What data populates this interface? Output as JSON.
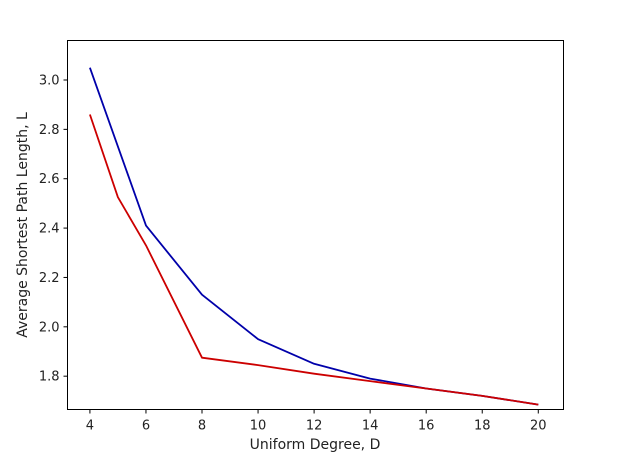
{
  "chart_data": {
    "type": "line",
    "title": "",
    "xlabel": "Uniform Degree, D",
    "ylabel": "Average Shortest Path Length, L",
    "xlim": [
      3.2,
      20.9
    ],
    "ylim": [
      1.665,
      3.16
    ],
    "x_ticks": [
      "4",
      "6",
      "8",
      "10",
      "12",
      "14",
      "16",
      "18",
      "20"
    ],
    "y_ticks": [
      "1.8",
      "2.0",
      "2.2",
      "2.4",
      "2.6",
      "2.8",
      "3.0"
    ],
    "grid": false,
    "legend": "none",
    "series": [
      {
        "color": "#0000aa",
        "x": [
          4,
          6,
          8,
          10,
          12,
          14,
          16,
          18,
          20
        ],
        "y": [
          3.05,
          2.41,
          2.13,
          1.95,
          1.85,
          1.79,
          1.75,
          1.72,
          1.685
        ]
      },
      {
        "color": "#cc0000",
        "x": [
          4,
          5,
          6,
          8,
          10,
          12,
          14,
          16,
          18,
          20
        ],
        "y": [
          2.86,
          2.525,
          2.33,
          1.875,
          1.845,
          1.81,
          1.78,
          1.75,
          1.72,
          1.685
        ]
      }
    ]
  }
}
